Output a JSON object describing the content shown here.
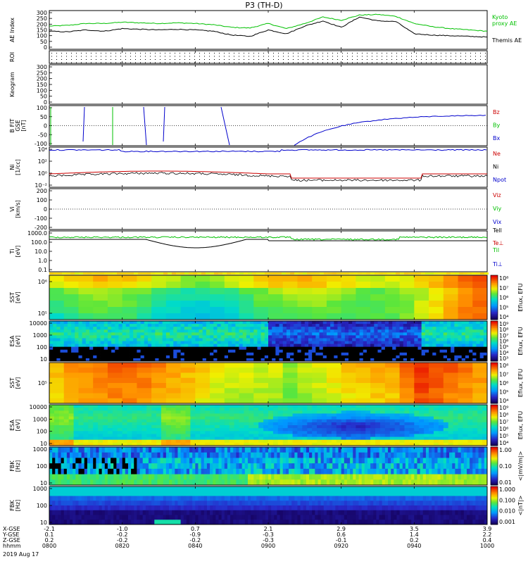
{
  "title": "P3 (TH-D)",
  "colors": {
    "red": "#cc0000",
    "green": "#00c000",
    "blue": "#0000cc",
    "black": "#000000"
  },
  "chart_data": [
    {
      "type": "line",
      "ylabel": "AE Index",
      "yticks": [
        "300",
        "250",
        "200",
        "150",
        "100",
        "50",
        "0"
      ],
      "ylim": [
        0,
        300
      ],
      "legend": [
        {
          "text": "Kyoto",
          "color": "#00c000"
        },
        {
          "text": "proxy AE",
          "color": "#00c000"
        },
        {
          "text": "Themis AE",
          "color": "#000000"
        }
      ],
      "series": [
        {
          "color": "#00c000",
          "x": [
            0,
            5,
            10,
            15,
            20,
            25,
            30,
            35,
            40,
            45,
            50,
            55,
            60,
            65,
            70,
            75,
            80,
            85,
            90,
            95,
            100,
            105,
            110,
            115,
            120
          ],
          "y": [
            180,
            185,
            200,
            200,
            210,
            205,
            200,
            205,
            200,
            190,
            170,
            165,
            200,
            160,
            200,
            250,
            225,
            265,
            270,
            255,
            200,
            175,
            160,
            150,
            140
          ]
        },
        {
          "color": "#000000",
          "x": [
            0,
            5,
            10,
            15,
            20,
            25,
            30,
            35,
            40,
            45,
            50,
            55,
            60,
            65,
            70,
            75,
            80,
            85,
            90,
            95,
            100,
            105,
            110,
            115,
            120
          ],
          "y": [
            140,
            135,
            150,
            140,
            160,
            155,
            150,
            155,
            150,
            140,
            110,
            100,
            150,
            120,
            180,
            220,
            170,
            250,
            220,
            215,
            120,
            110,
            105,
            100,
            95
          ]
        }
      ]
    },
    {
      "type": "scatter",
      "ylabel": "ROI",
      "legend": []
    },
    {
      "type": "line",
      "ylabel": "Keogram",
      "yticks": [
        "300",
        "250",
        "200",
        "150",
        "100",
        "50",
        "0"
      ],
      "ylim": [
        0,
        300
      ],
      "legend": []
    },
    {
      "type": "line",
      "ylabel": "B FIT\nGSE\n[nT]",
      "yticks": [
        "100",
        "50",
        "0",
        "-50",
        "-100"
      ],
      "ylim": [
        -100,
        100
      ],
      "legend": [
        {
          "text": "Bz",
          "color": "#cc0000"
        },
        {
          "text": "By",
          "color": "#00c000"
        },
        {
          "text": "Bx",
          "color": "#0000cc"
        }
      ]
    },
    {
      "type": "line",
      "ylabel": "Ni\n[1/cc]",
      "yticks": [
        "10⁴",
        "10²",
        "10⁰",
        "10⁻²"
      ],
      "legend": [
        {
          "text": "Ne",
          "color": "#cc0000"
        },
        {
          "text": "Ni",
          "color": "#000000"
        },
        {
          "text": "Npot",
          "color": "#0000cc"
        }
      ]
    },
    {
      "type": "line",
      "ylabel": "Vi\n[km/s]",
      "yticks": [
        "200",
        "100",
        "0",
        "-100",
        "-200"
      ],
      "ylim": [
        -200,
        200
      ],
      "legend": [
        {
          "text": "Viz",
          "color": "#cc0000"
        },
        {
          "text": "Viy",
          "color": "#00c000"
        },
        {
          "text": "Vix",
          "color": "#0000cc"
        }
      ]
    },
    {
      "type": "line",
      "ylabel": "Ti\n[eV]",
      "yticks": [
        "1000.0",
        "100.0",
        "10.0",
        "1.0",
        "0.1"
      ],
      "legend": [
        {
          "text": "Tell",
          "color": "#000000"
        },
        {
          "text": "Te⊥",
          "color": "#cc0000"
        },
        {
          "text": "Til",
          "color": "#00c000"
        },
        {
          "text": "Ti⊥",
          "color": "#0000cc"
        }
      ]
    },
    {
      "type": "heatmap",
      "ylabel": "SST\n[eV]",
      "yticks": [
        "10⁶",
        "10⁵"
      ],
      "colorbar_label": "Eflux, EFU",
      "colorbar_ticks": [
        "10⁸",
        "10⁷",
        "10⁶",
        "10⁵",
        "10⁴"
      ]
    },
    {
      "type": "heatmap",
      "ylabel": "ESA\n[eV]",
      "yticks": [
        "10000",
        "1000",
        "100",
        "10"
      ],
      "colorbar_label": "Eflux, EFU",
      "colorbar_ticks": [
        "10⁹",
        "10⁸",
        "10⁷",
        "10⁶",
        "10⁵",
        "10⁴",
        "10³"
      ]
    },
    {
      "type": "heatmap",
      "ylabel": "SST\n[eV]",
      "yticks": [
        "10⁵"
      ],
      "colorbar_label": "Eflux, EFU",
      "colorbar_ticks": [
        "10⁸",
        "10⁷",
        "10⁶",
        "10⁵",
        "10⁴"
      ]
    },
    {
      "type": "heatmap",
      "ylabel": "ESA\n[eV]",
      "yticks": [
        "10000",
        "1000",
        "100",
        "10"
      ],
      "colorbar_label": "Eflux, EFU",
      "colorbar_ticks": [
        "10⁹",
        "10⁸",
        "10⁷",
        "10⁶",
        "10⁵",
        "10⁴"
      ]
    },
    {
      "type": "heatmap",
      "ylabel": "FBK\n[Hz]",
      "yticks": [
        "1000",
        "100",
        "10"
      ],
      "colorbar_label": "<|mV/m|>",
      "colorbar_ticks": [
        "1.00",
        "0.10",
        "0.01"
      ]
    },
    {
      "type": "heatmap",
      "ylabel": "FBK\n[Hz]",
      "yticks": [
        "1000",
        "100",
        "10"
      ],
      "colorbar_label": "<|nT|>",
      "colorbar_ticks": [
        "1.000",
        "0.100",
        "0.010",
        "0.001"
      ]
    }
  ],
  "xaxis": {
    "rows": [
      {
        "label": "X-GSE",
        "values": [
          "-2.1",
          "-1.0",
          "0.7",
          "2.1",
          "2.9",
          "3.5",
          "3.9"
        ]
      },
      {
        "label": "Y-GSE",
        "values": [
          "0.1",
          "-0.2",
          "-0.9",
          "-0.3",
          "0.6",
          "1.4",
          "2.2"
        ]
      },
      {
        "label": "Z-GSE",
        "values": [
          "0.2",
          "-0.2",
          "-0.2",
          "-0.3",
          "-0.1",
          "0.2",
          "0.4"
        ]
      },
      {
        "label": "hhmm",
        "values": [
          "0800",
          "0820",
          "0840",
          "0900",
          "0920",
          "0940",
          "1000"
        ]
      }
    ],
    "date": "2019 Aug 17"
  }
}
